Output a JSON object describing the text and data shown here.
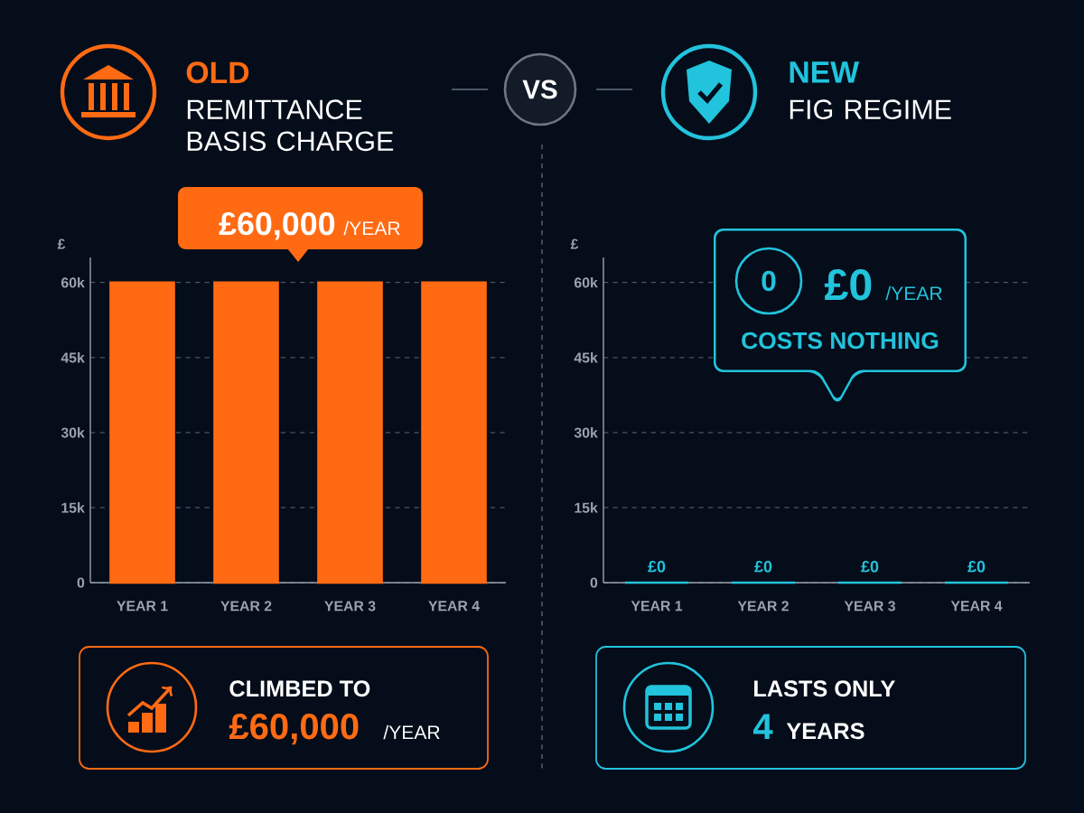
{
  "chart_data": [
    {
      "type": "bar",
      "title": "OLD",
      "subtitle": "REMITTANCE BASIS CHARGE",
      "ylabel": "£",
      "categories": [
        "YEAR 1",
        "YEAR 2",
        "YEAR 3",
        "YEAR 4"
      ],
      "values": [
        60000,
        60000,
        60000,
        60000
      ],
      "color": "#ff6a13",
      "ylim": [
        0,
        65000
      ],
      "yticks": [
        0,
        {
          "value": 15000,
          "label": "15k"
        },
        {
          "value": 30000,
          "label": "30k"
        },
        {
          "value": 45000,
          "label": "45k"
        },
        {
          "value": 60000,
          "label": "60k"
        }
      ],
      "grid": "y",
      "annotations": [
        "£60,000",
        "/YEAR",
        "CLIMBED TO",
        "£60,000",
        "/YEAR",
        "VS"
      ]
    },
    {
      "type": "bar",
      "title": "NEW",
      "subtitle": "FIG REGIME",
      "ylabel": "£",
      "categories": [
        "YEAR 1",
        "YEAR 2",
        "YEAR 3",
        "YEAR 4"
      ],
      "values": [
        0,
        0,
        0,
        0
      ],
      "value_labels": [
        "£0",
        "£0",
        "£0",
        "£0"
      ],
      "color": "#22c3dc",
      "ylim": [
        0,
        65000
      ],
      "yticks": [
        0,
        {
          "value": 15000,
          "label": "15k"
        },
        {
          "value": 30000,
          "label": "30k"
        },
        {
          "value": 45000,
          "label": "45k"
        },
        {
          "value": 60000,
          "label": "60k"
        }
      ],
      "grid": "y",
      "annotations": [
        "0",
        "£0",
        "/YEAR",
        "COSTS NOTHING",
        "LASTS ONLY",
        "4",
        "YEARS"
      ]
    }
  ]
}
